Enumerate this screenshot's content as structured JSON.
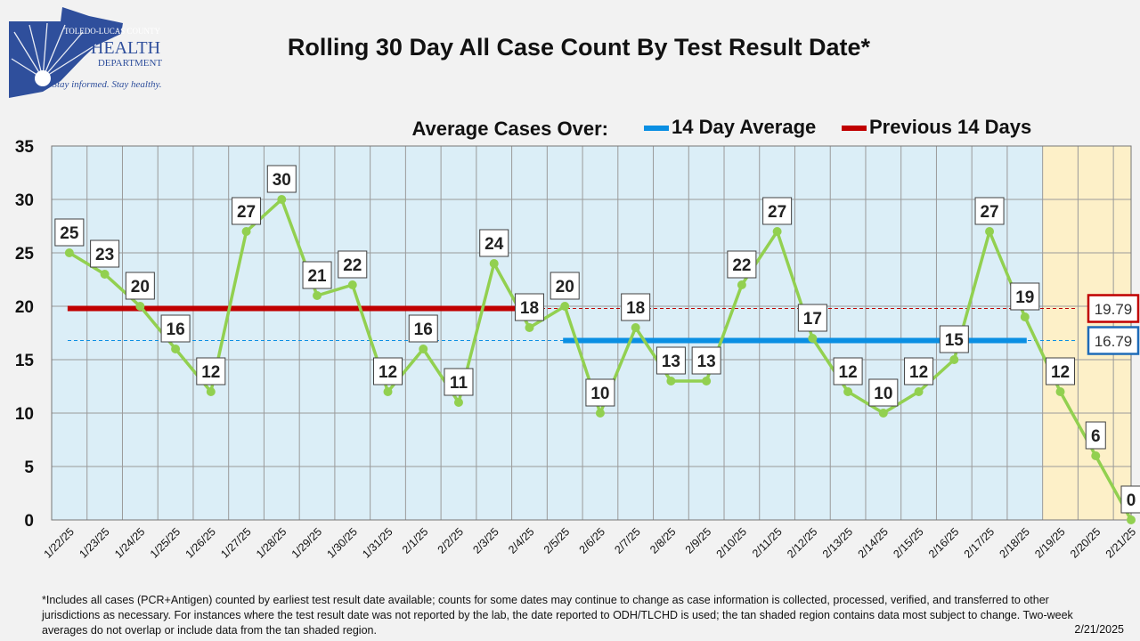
{
  "header": {
    "title": "Rolling 30 Day All Case Count By Test Result Date*",
    "logo": {
      "line1": "TOLEDO-LUCAS COUNTY",
      "line2": "HEALTH",
      "line3": "DEPARTMENT",
      "tagline": "Stay informed. Stay healthy."
    }
  },
  "legend": {
    "heading": "Average Cases Over:",
    "items": [
      "14 Day Average",
      "Previous 14 Days"
    ]
  },
  "colors": {
    "plot_bg": "#dbeef7",
    "tan_bg": "#fdf0c8",
    "line": "#92d050",
    "avg14": "#0a8fe3",
    "prev14": "#c00000",
    "grid": "#9a9a9a"
  },
  "chart_data": {
    "type": "line",
    "categories": [
      "1/22/25",
      "1/23/25",
      "1/24/25",
      "1/25/25",
      "1/26/25",
      "1/27/25",
      "1/28/25",
      "1/29/25",
      "1/30/25",
      "1/31/25",
      "2/1/25",
      "2/2/25",
      "2/3/25",
      "2/4/25",
      "2/5/25",
      "2/6/25",
      "2/7/25",
      "2/8/25",
      "2/9/25",
      "2/10/25",
      "2/11/25",
      "2/12/25",
      "2/13/25",
      "2/14/25",
      "2/15/25",
      "2/16/25",
      "2/17/25",
      "2/18/25",
      "2/19/25",
      "2/20/25",
      "2/21/25"
    ],
    "values": [
      25,
      23,
      20,
      16,
      12,
      27,
      30,
      21,
      22,
      12,
      16,
      11,
      24,
      18,
      20,
      10,
      18,
      13,
      13,
      22,
      27,
      17,
      12,
      10,
      12,
      15,
      27,
      19,
      12,
      6,
      0
    ],
    "ylim": [
      0,
      35
    ],
    "yticks": [
      "0",
      "5",
      "10",
      "15",
      "20",
      "25",
      "30",
      "35"
    ],
    "averages": {
      "avg_14_day": {
        "value": 16.79,
        "label": "16.79",
        "from": "2/5/25",
        "to": "2/18/25"
      },
      "prev_14_days": {
        "value": 19.79,
        "label": "19.79",
        "from": "1/22/25",
        "to": "2/4/25"
      }
    },
    "tan_region": {
      "from": "2/19/25",
      "to": "2/21/25"
    },
    "grid": true
  },
  "footnote": "*Includes all cases (PCR+Antigen) counted by earliest test result date available; counts for some dates may continue to change as case information is collected, processed, verified, and transferred to other jurisdictions as necessary. For instances where the test result date was not reported by the lab, the date reported to ODH/TLCHD is used; the tan shaded region contains data most subject to change. Two-week averages do not overlap or include data from the tan shaded region.",
  "report_date": "2/21/2025"
}
